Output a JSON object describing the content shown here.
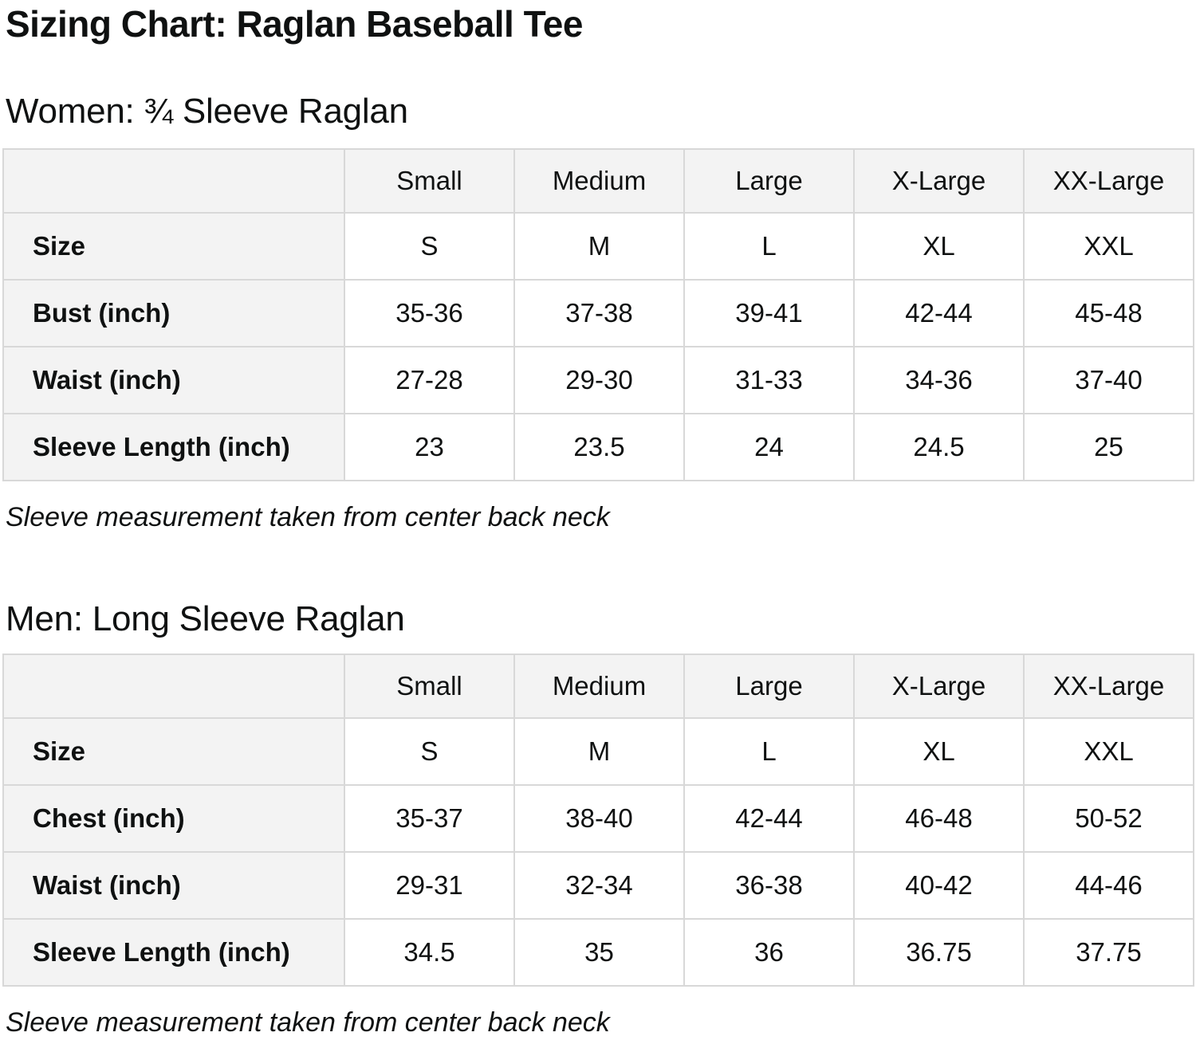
{
  "page": {
    "title": "Sizing Chart: Raglan Baseball Tee"
  },
  "colors": {
    "text": "#0f1111",
    "header_and_label_cell_bg": "#f3f3f3",
    "data_cell_bg": "#ffffff",
    "border": "#d8d8d8"
  },
  "sections": [
    {
      "heading": "Women: ¾ Sleeve Raglan",
      "note": "Sleeve measurement taken from center back neck",
      "table": {
        "corner": "",
        "column_headers": [
          "Small",
          "Medium",
          "Large",
          "X-Large",
          "XX-Large"
        ],
        "rows": [
          {
            "label": "Size",
            "values": [
              "S",
              "M",
              "L",
              "XL",
              "XXL"
            ]
          },
          {
            "label": "Bust (inch)",
            "values": [
              "35-36",
              "37-38",
              "39-41",
              "42-44",
              "45-48"
            ]
          },
          {
            "label": "Waist (inch)",
            "values": [
              "27-28",
              "29-30",
              "31-33",
              "34-36",
              "37-40"
            ]
          },
          {
            "label": "Sleeve Length (inch)",
            "values": [
              "23",
              "23.5",
              "24",
              "24.5",
              "25"
            ]
          }
        ]
      }
    },
    {
      "heading": "Men: Long Sleeve Raglan",
      "note": "Sleeve measurement taken from center back neck",
      "table": {
        "corner": "",
        "column_headers": [
          "Small",
          "Medium",
          "Large",
          "X-Large",
          "XX-Large"
        ],
        "rows": [
          {
            "label": "Size",
            "values": [
              "S",
              "M",
              "L",
              "XL",
              "XXL"
            ]
          },
          {
            "label": "Chest (inch)",
            "values": [
              "35-37",
              "38-40",
              "42-44",
              "46-48",
              "50-52"
            ]
          },
          {
            "label": "Waist (inch)",
            "values": [
              "29-31",
              "32-34",
              "36-38",
              "40-42",
              "44-46"
            ]
          },
          {
            "label": "Sleeve Length (inch)",
            "values": [
              "34.5",
              "35",
              "36",
              "36.75",
              "37.75"
            ]
          }
        ]
      }
    }
  ]
}
